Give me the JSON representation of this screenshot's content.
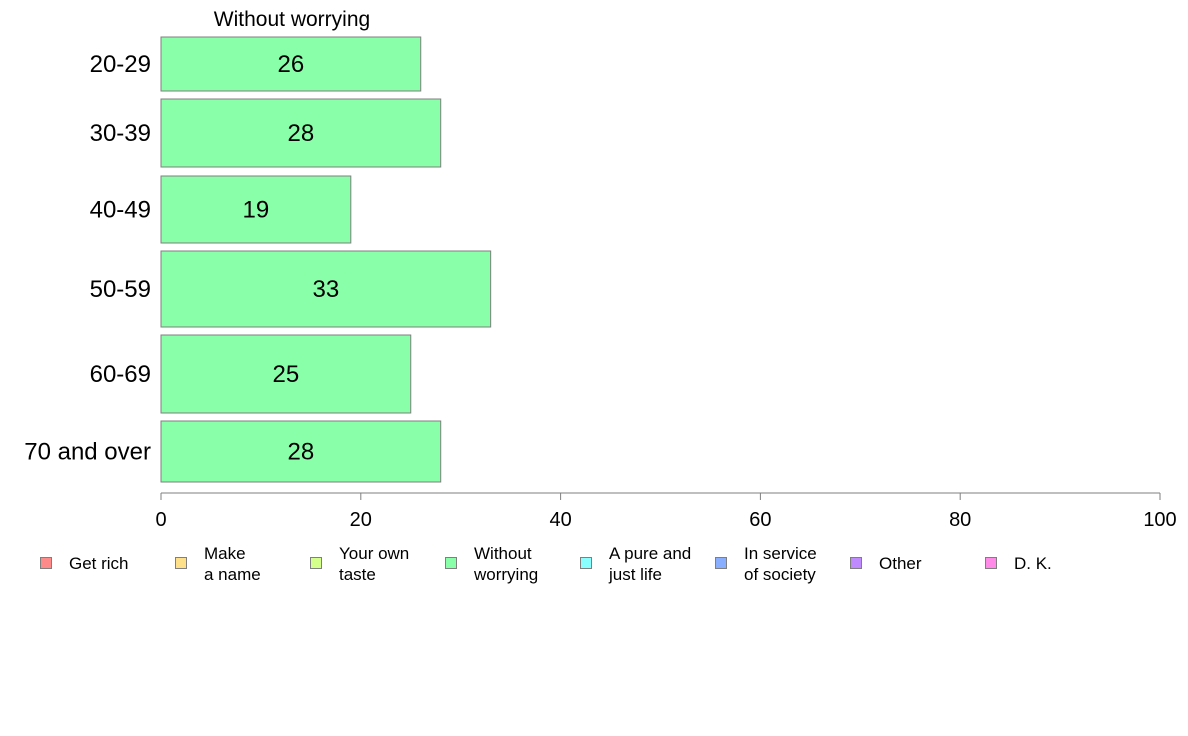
{
  "chart_data": {
    "type": "bar",
    "orientation": "horizontal",
    "title": "Without worrying",
    "categories": [
      "20-29",
      "30-39",
      "40-49",
      "50-59",
      "60-69",
      "70 and over"
    ],
    "series": [
      {
        "name": "Without worrying",
        "values": [
          26,
          28,
          19,
          33,
          25,
          28
        ],
        "color": "#8AFFAA"
      }
    ],
    "data_labels": [
      "26",
      "28",
      "19",
      "33",
      "25",
      "28"
    ],
    "xlim": [
      0,
      100
    ],
    "xticks": [
      0,
      20,
      40,
      60,
      80,
      100
    ],
    "grid": false,
    "legend": {
      "position": "bottom",
      "entries": [
        {
          "label": "Get rich",
          "color": "#FF8A8A"
        },
        {
          "label": "Make\na name",
          "color": "#FFE08A"
        },
        {
          "label": "Your own\ntaste",
          "color": "#D4FF8A"
        },
        {
          "label": "Without\nworrying",
          "color": "#8AFFAA"
        },
        {
          "label": "A pure and\njust life",
          "color": "#8AFFFF"
        },
        {
          "label": "In service\nof society",
          "color": "#8AAEFF"
        },
        {
          "label": "Other",
          "color": "#C08AFF"
        },
        {
          "label": "D. K.",
          "color": "#FF8AE8"
        }
      ]
    }
  }
}
